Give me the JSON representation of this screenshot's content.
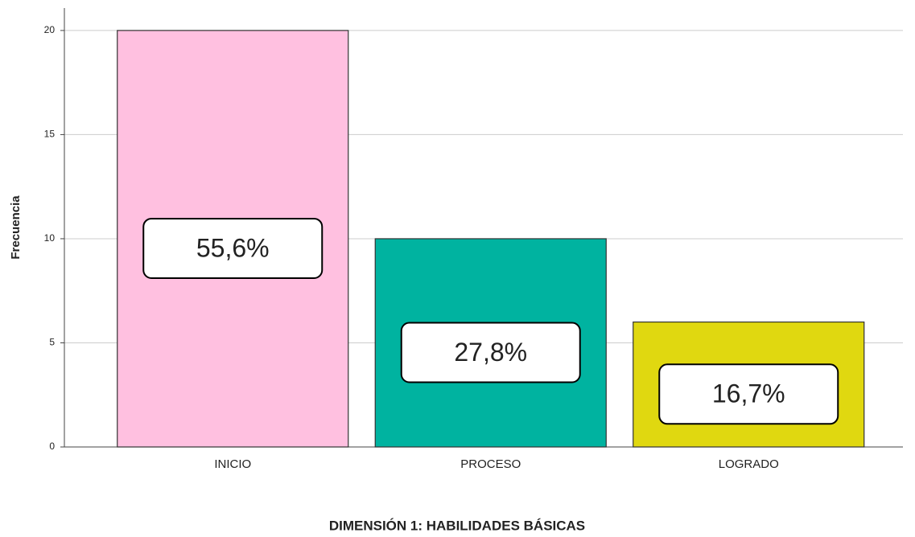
{
  "chart_data": {
    "type": "bar",
    "title": "DIMENSIÓN 1: HABILIDADES BÁSICAS",
    "y_label": "Frecuencia",
    "categories": [
      "INICIO",
      "PROCESO",
      "LOGRADO"
    ],
    "series": [
      {
        "name": "Frecuencia",
        "colors": [
          "#ffc0e0",
          "#00b3a0",
          "#e0d810"
        ],
        "values": [
          20,
          10,
          6
        ]
      }
    ],
    "percent": {
      "values": [
        55.6,
        27.8,
        16.7
      ],
      "value_labels": [
        "55,6%",
        "27,8%",
        "16,7%"
      ]
    },
    "ylim": [
      0,
      21
    ],
    "yticks": [
      0,
      5,
      10,
      15,
      20
    ],
    "grid": true
  }
}
